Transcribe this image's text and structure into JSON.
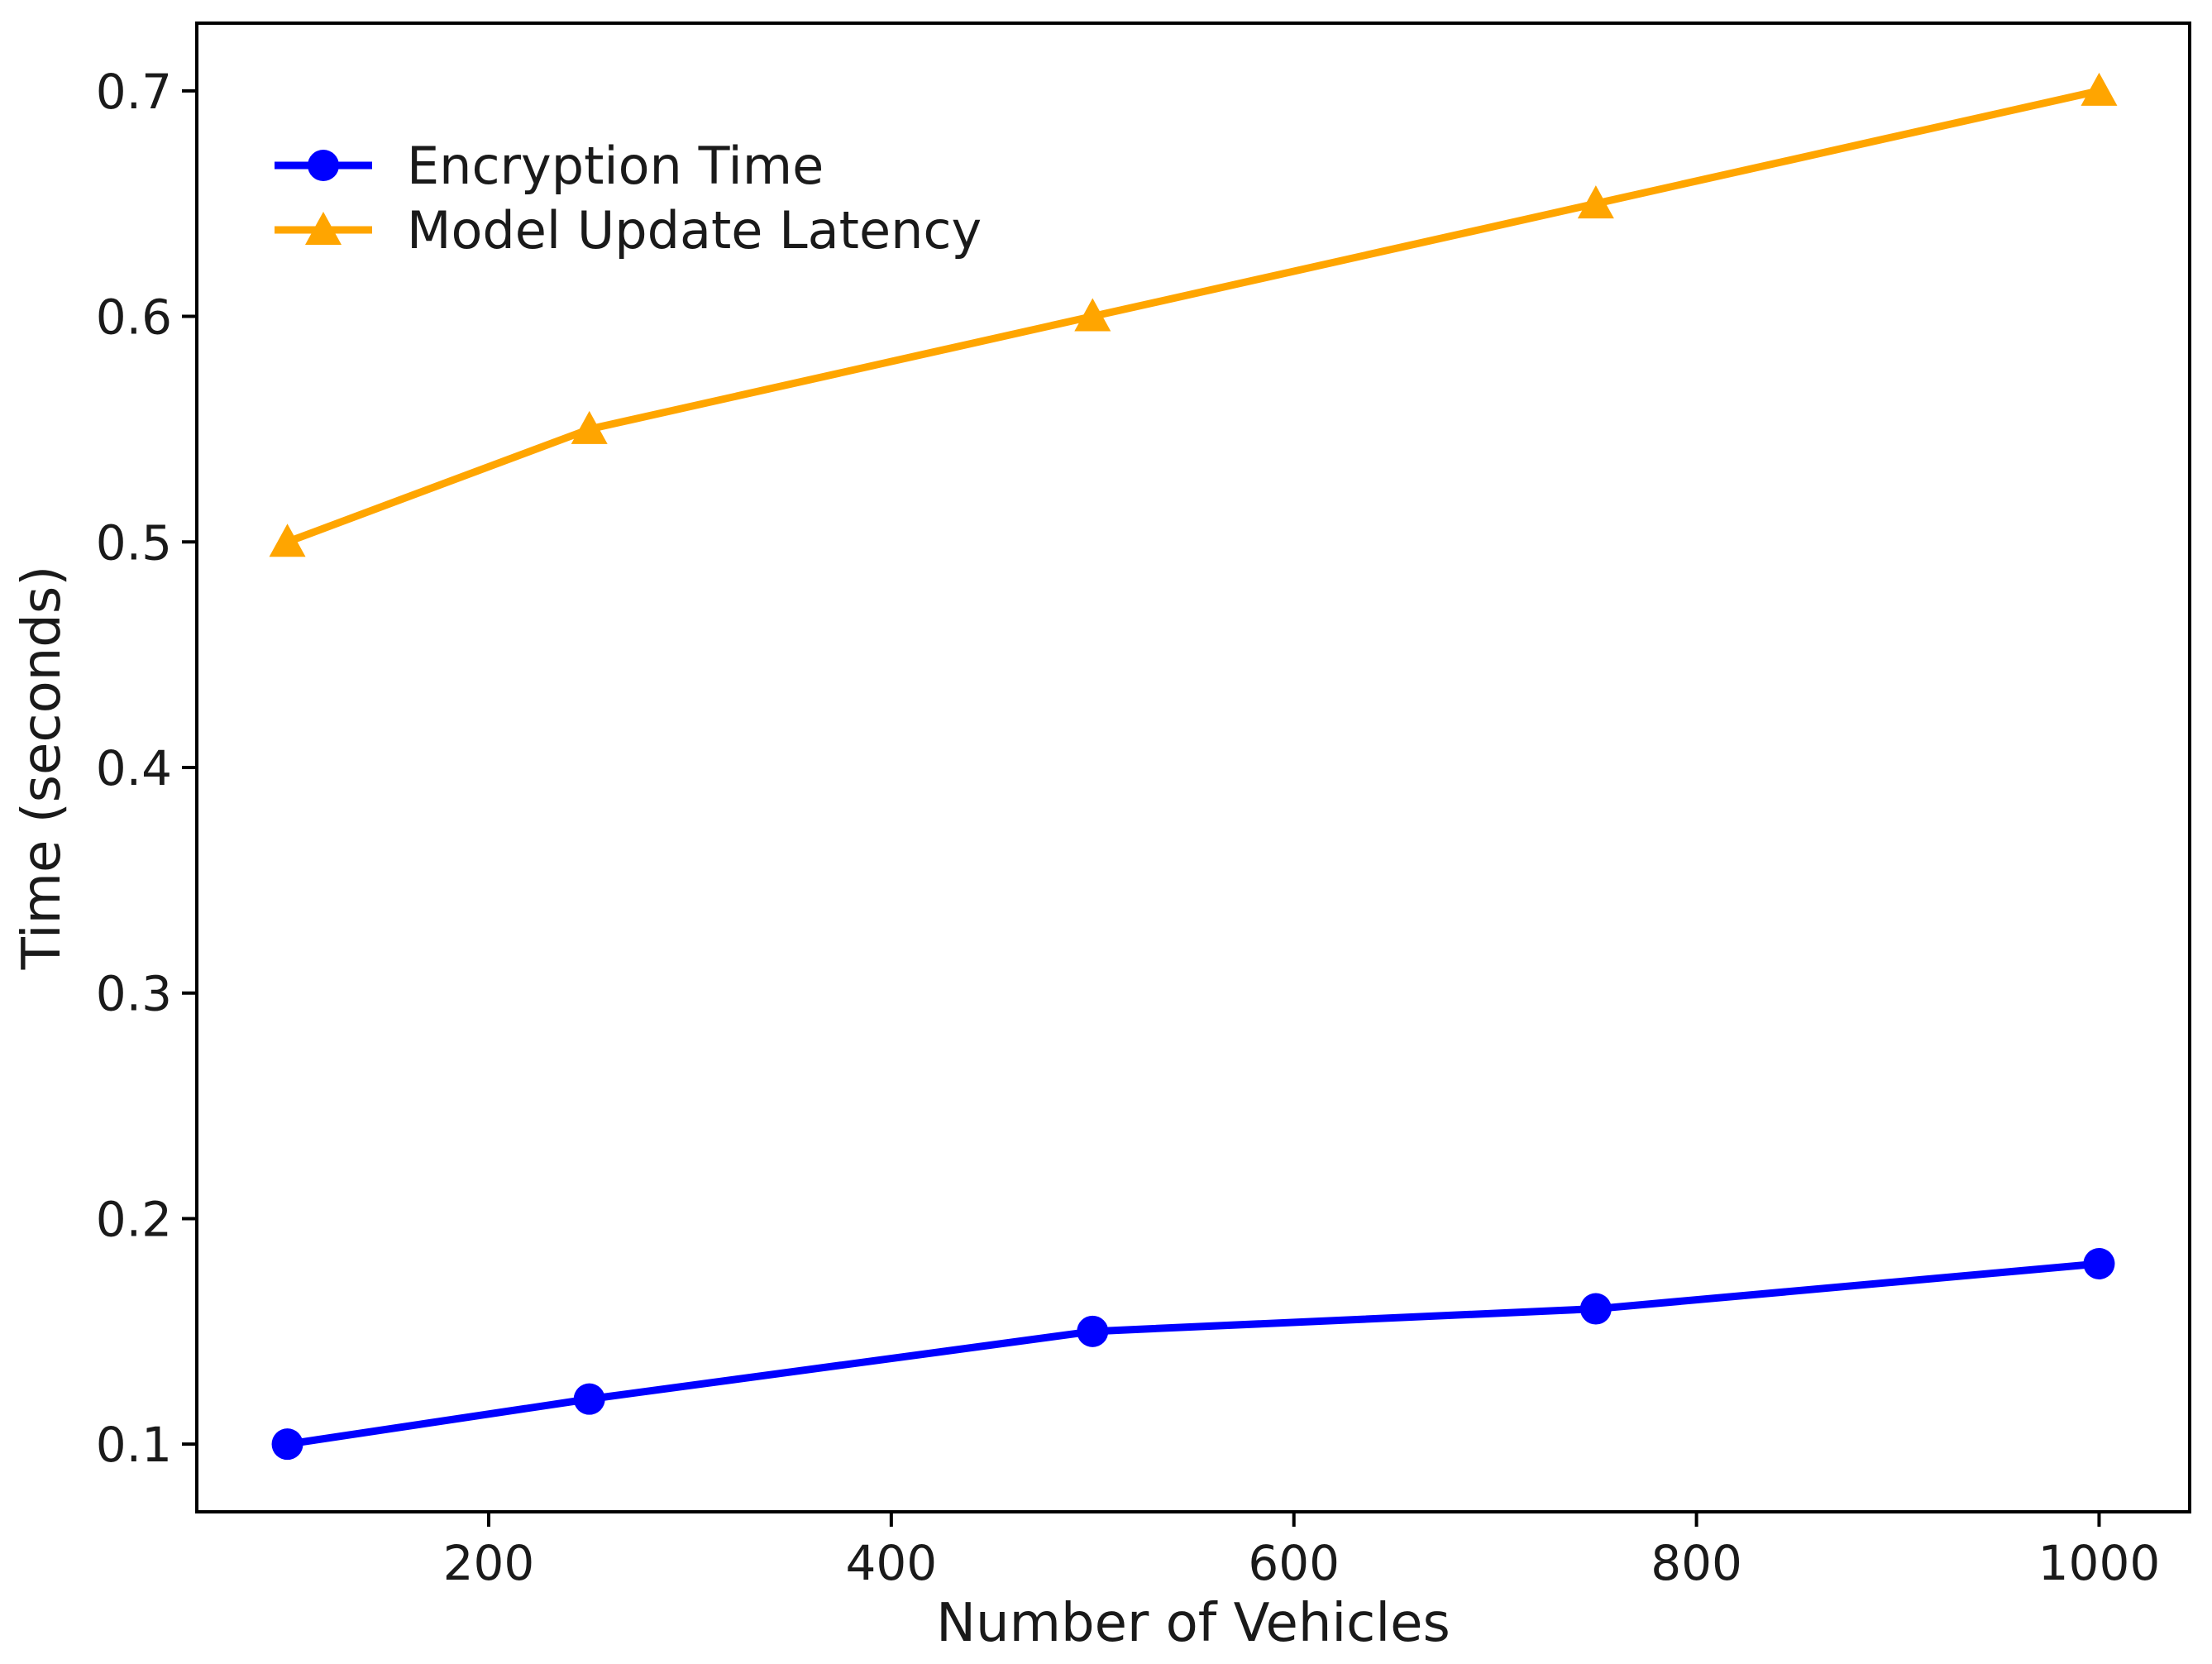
{
  "figure": {
    "background": "#ffffff"
  },
  "chart_data": {
    "type": "line",
    "title": "",
    "xlabel": "Number of Vehicles",
    "ylabel": "Time (seconds)",
    "x": [
      100,
      250,
      500,
      750,
      1000
    ],
    "series": [
      {
        "name": "Encryption Time",
        "color": "#0000ff",
        "marker": "circle",
        "values": [
          0.1,
          0.12,
          0.15,
          0.16,
          0.18
        ]
      },
      {
        "name": "Model Update Latency",
        "color": "#ffa500",
        "marker": "triangle",
        "values": [
          0.5,
          0.55,
          0.6,
          0.65,
          0.7
        ]
      }
    ],
    "xticks": [
      200,
      400,
      600,
      800,
      1000
    ],
    "yticks": [
      0.1,
      0.2,
      0.3,
      0.4,
      0.5,
      0.6,
      0.7
    ],
    "xlim": [
      55,
      1045
    ],
    "ylim": [
      0.07,
      0.73
    ],
    "grid": false,
    "legend": {
      "position": "upper-left",
      "frame": false,
      "labels": [
        "Encryption Time",
        "Model Update Latency"
      ]
    },
    "axis_color": "#000000",
    "text_color": "#1a1a1a"
  }
}
